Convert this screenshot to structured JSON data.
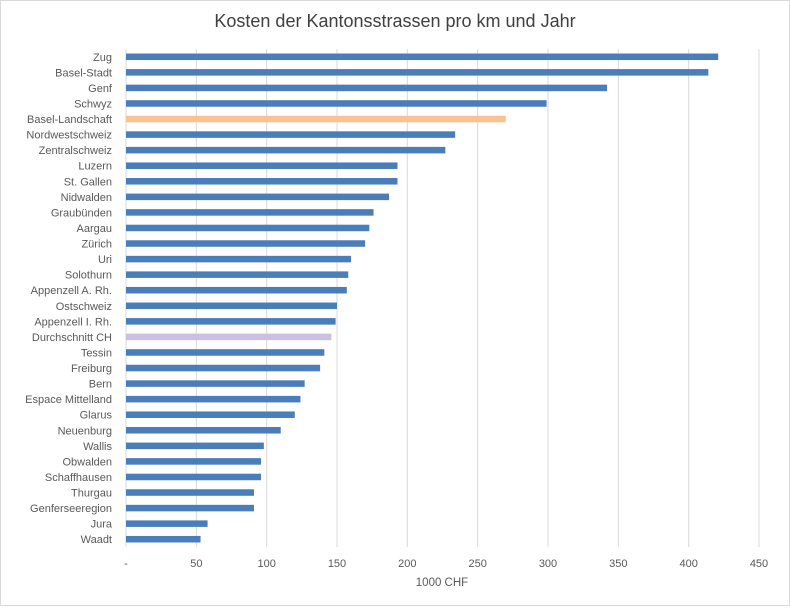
{
  "chart_data": {
    "type": "bar",
    "orientation": "horizontal",
    "title": "Kosten der Kantonsstrassen pro km und Jahr",
    "xlabel": "1000 CHF",
    "ylabel": "",
    "xlim": [
      0,
      450
    ],
    "x_ticks": [
      0,
      50,
      100,
      150,
      200,
      250,
      300,
      350,
      400,
      450
    ],
    "x_tick_labels": [
      "-",
      "50",
      "100",
      "150",
      "200",
      "250",
      "300",
      "350",
      "400",
      "450"
    ],
    "grid": true,
    "colors": {
      "default": "#4a7ebb",
      "Basel-Landschaft": "#f9c28f",
      "Durchschnitt CH": "#c9c1de"
    },
    "categories": [
      "Zug",
      "Basel-Stadt",
      "Genf",
      "Schwyz",
      "Basel-Landschaft",
      "Nordwestschweiz",
      "Zentralschweiz",
      "Luzern",
      "St. Gallen",
      "Nidwalden",
      "Graubünden",
      "Aargau",
      "Zürich",
      "Uri",
      "Solothurn",
      "Appenzell A. Rh.",
      "Ostschweiz",
      "Appenzell I. Rh.",
      "Durchschnitt CH",
      "Tessin",
      "Freiburg",
      "Bern",
      "Espace Mittelland",
      "Glarus",
      "Neuenburg",
      "Wallis",
      "Obwalden",
      "Schaffhausen",
      "Thurgau",
      "Genferseeregion",
      "Jura",
      "Waadt"
    ],
    "values": [
      421,
      414,
      342,
      299,
      270,
      234,
      227,
      193,
      193,
      187,
      176,
      173,
      170,
      160,
      158,
      157,
      150,
      149,
      146,
      141,
      138,
      127,
      124,
      120,
      110,
      98,
      96,
      96,
      91,
      91,
      58,
      53
    ]
  }
}
